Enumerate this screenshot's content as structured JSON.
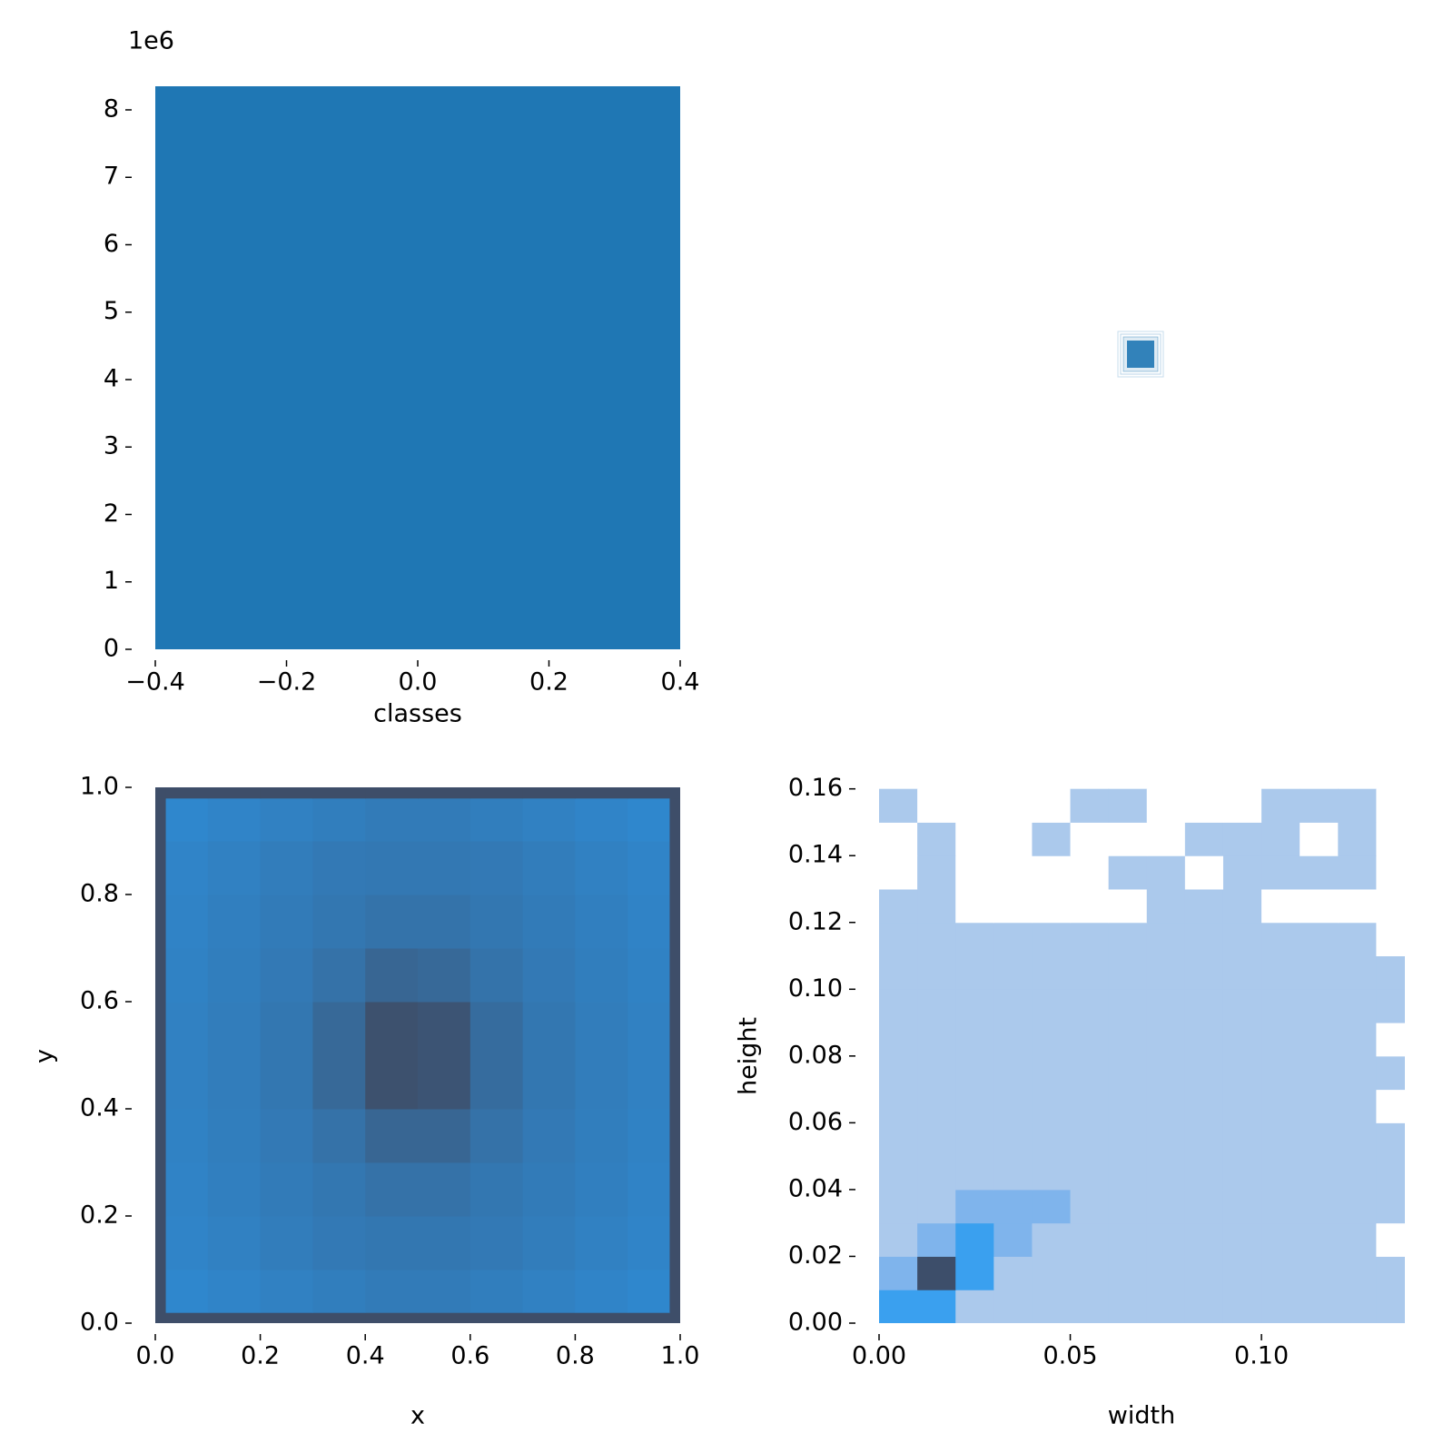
{
  "chart_data": [
    {
      "type": "histogram",
      "xlabel": "classes",
      "offset_text": "1e6",
      "color": "#1f77b4",
      "bins": [
        -0.4,
        0.4
      ],
      "counts": [
        8350000
      ],
      "xlim": [
        -0.4,
        0.4
      ],
      "ylim": [
        0,
        8350000
      ],
      "xticks": [
        {
          "value": -0.4,
          "label": "−0.4"
        },
        {
          "value": -0.2,
          "label": "−0.2"
        },
        {
          "value": 0,
          "label": "0.0"
        },
        0.2,
        0.4
      ],
      "yticks": [
        0,
        {
          "value": 1000000,
          "label": "1"
        },
        {
          "value": 2000000,
          "label": "2"
        },
        {
          "value": 3000000,
          "label": "3"
        },
        {
          "value": 4000000,
          "label": "4"
        },
        {
          "value": 5000000,
          "label": "5"
        },
        {
          "value": 6000000,
          "label": "6"
        },
        {
          "value": 7000000,
          "label": "7"
        },
        {
          "value": 8000000,
          "label": "8"
        }
      ]
    },
    {
      "type": "heatmap",
      "xlabel": "x",
      "ylabel": "y",
      "colors": [
        "#2f87cd",
        "#3e4e69"
      ],
      "xbins": [
        0,
        0.02,
        0.1,
        0.2,
        0.3,
        0.4,
        0.5,
        0.6,
        0.7,
        0.8,
        0.9,
        0.98,
        1
      ],
      "ybins": [
        0,
        0.02,
        0.1,
        0.2,
        0.3,
        0.4,
        0.5,
        0.6,
        0.7,
        0.8,
        0.9,
        0.98,
        1
      ],
      "values": [
        [
          100,
          100,
          100,
          100,
          100,
          100,
          100,
          100,
          100,
          100,
          100,
          100
        ],
        [
          100,
          5,
          10,
          15,
          20,
          25,
          25,
          20,
          15,
          10,
          5,
          100
        ],
        [
          100,
          10,
          15,
          22,
          28,
          32,
          32,
          28,
          22,
          15,
          10,
          100
        ],
        [
          100,
          12,
          18,
          25,
          32,
          40,
          40,
          32,
          25,
          18,
          12,
          100
        ],
        [
          100,
          14,
          20,
          28,
          40,
          60,
          60,
          40,
          28,
          20,
          14,
          100
        ],
        [
          100,
          15,
          22,
          32,
          55,
          95,
          90,
          50,
          32,
          22,
          15,
          100
        ],
        [
          100,
          15,
          22,
          32,
          55,
          95,
          90,
          50,
          32,
          22,
          15,
          100
        ],
        [
          100,
          14,
          20,
          28,
          40,
          60,
          55,
          38,
          28,
          20,
          14,
          100
        ],
        [
          100,
          12,
          18,
          25,
          32,
          38,
          38,
          32,
          25,
          18,
          12,
          100
        ],
        [
          100,
          10,
          15,
          22,
          28,
          30,
          30,
          28,
          22,
          15,
          10,
          100
        ],
        [
          100,
          5,
          10,
          15,
          20,
          25,
          25,
          20,
          15,
          10,
          5,
          100
        ],
        [
          100,
          100,
          100,
          100,
          100,
          100,
          100,
          100,
          100,
          100,
          100,
          100
        ]
      ],
      "xlim": [
        0,
        1
      ],
      "ylim": [
        0,
        1
      ],
      "xticks": [
        {
          "value": 0,
          "label": "0.0"
        },
        0.2,
        0.4,
        0.6,
        0.8,
        {
          "value": 1,
          "label": "1.0"
        }
      ],
      "yticks": [
        {
          "value": 0,
          "label": "0.0"
        },
        0.2,
        0.4,
        0.6,
        0.8,
        {
          "value": 1,
          "label": "1.0"
        }
      ]
    },
    {
      "type": "levelmap",
      "xlabel": "width",
      "ylabel": "height",
      "cmap": [
        "#ffffff",
        "#abc9ec",
        "#7fb4ec",
        "#3aa0ef",
        "#3d4e6a"
      ],
      "xbins": [
        0,
        0.01,
        0.02,
        0.03,
        0.04,
        0.05,
        0.06,
        0.07,
        0.08,
        0.09,
        0.1,
        0.11,
        0.12,
        0.13,
        0.14
      ],
      "ybins": [
        0,
        0.01,
        0.02,
        0.03,
        0.04,
        0.05,
        0.06,
        0.07,
        0.08,
        0.09,
        0.1,
        0.11,
        0.12,
        0.13,
        0.14,
        0.15,
        0.16
      ],
      "values": [
        [
          3,
          3,
          1,
          1,
          1,
          1,
          1,
          1,
          1,
          1,
          1,
          1,
          1,
          1
        ],
        [
          2,
          4,
          3,
          1,
          1,
          1,
          1,
          1,
          1,
          1,
          1,
          1,
          1,
          1
        ],
        [
          1,
          2,
          3,
          2,
          1,
          1,
          1,
          1,
          1,
          1,
          1,
          1,
          1,
          0
        ],
        [
          1,
          1,
          2,
          2,
          2,
          1,
          1,
          1,
          1,
          1,
          1,
          1,
          1,
          1
        ],
        [
          1,
          1,
          1,
          1,
          1,
          1,
          1,
          1,
          1,
          1,
          1,
          1,
          1,
          1
        ],
        [
          1,
          1,
          1,
          1,
          1,
          1,
          1,
          1,
          1,
          1,
          1,
          1,
          1,
          1
        ],
        [
          1,
          1,
          1,
          1,
          1,
          1,
          1,
          1,
          1,
          1,
          1,
          1,
          1,
          0
        ],
        [
          1,
          1,
          1,
          1,
          1,
          1,
          1,
          1,
          1,
          1,
          1,
          1,
          1,
          1
        ],
        [
          1,
          1,
          1,
          1,
          1,
          1,
          1,
          1,
          1,
          1,
          1,
          1,
          1,
          0
        ],
        [
          1,
          1,
          1,
          1,
          1,
          1,
          1,
          1,
          1,
          1,
          1,
          1,
          1,
          1
        ],
        [
          1,
          1,
          1,
          1,
          1,
          1,
          1,
          1,
          1,
          1,
          1,
          1,
          1,
          1
        ],
        [
          1,
          1,
          1,
          1,
          1,
          1,
          1,
          1,
          1,
          1,
          1,
          1,
          1,
          0
        ],
        [
          1,
          1,
          0,
          0,
          0,
          0,
          0,
          1,
          1,
          1,
          0,
          0,
          0,
          0
        ],
        [
          0,
          1,
          0,
          0,
          0,
          0,
          1,
          1,
          0,
          1,
          1,
          1,
          1,
          0
        ],
        [
          0,
          1,
          0,
          0,
          1,
          0,
          0,
          0,
          1,
          1,
          1,
          0,
          1,
          0
        ],
        [
          1,
          0,
          0,
          0,
          0,
          1,
          1,
          0,
          0,
          0,
          1,
          1,
          1,
          0
        ]
      ],
      "xlim": [
        0,
        0.1375
      ],
      "ylim": [
        0,
        0.161
      ],
      "xticks": [
        {
          "value": 0,
          "label": "0.00"
        },
        {
          "value": 0.05,
          "label": "0.05"
        },
        {
          "value": 0.1,
          "label": "0.10"
        }
      ],
      "yticks": [
        {
          "value": 0,
          "label": "0.00"
        },
        {
          "value": 0.02,
          "label": "0.02"
        },
        {
          "value": 0.04,
          "label": "0.04"
        },
        {
          "value": 0.06,
          "label": "0.06"
        },
        {
          "value": 0.08,
          "label": "0.08"
        },
        {
          "value": 0.1,
          "label": "0.10"
        },
        {
          "value": 0.12,
          "label": "0.12"
        },
        {
          "value": 0.14,
          "label": "0.14"
        },
        {
          "value": 0.16,
          "label": "0.16"
        }
      ]
    }
  ]
}
